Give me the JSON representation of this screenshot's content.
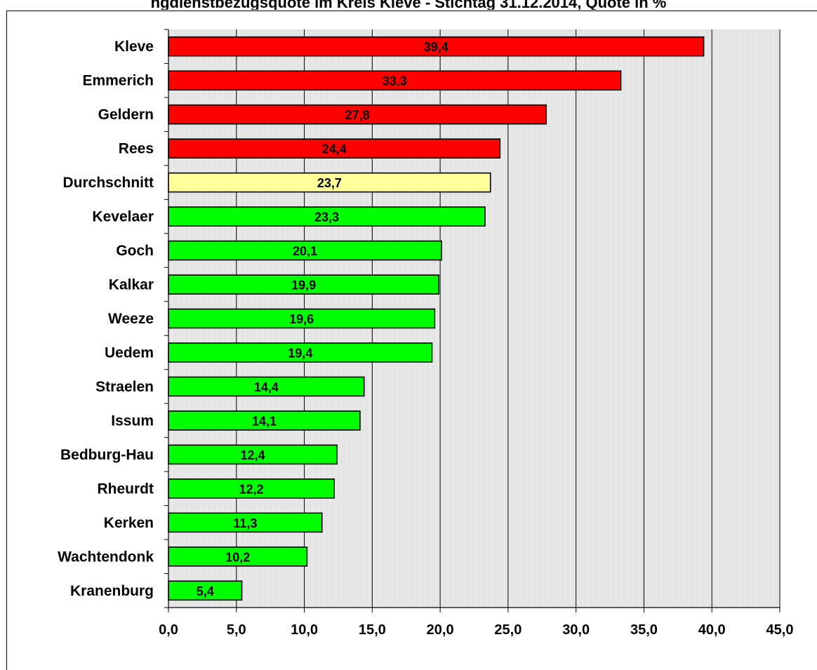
{
  "chart_data": {
    "type": "bar",
    "orientation": "horizontal",
    "title": "",
    "categories": [
      "Kleve",
      "Emmerich",
      "Geldern",
      "Rees",
      "Durchschnitt",
      "Kevelaer",
      "Goch",
      "Kalkar",
      "Weeze",
      "Uedem",
      "Straelen",
      "Issum",
      "Bedburg-Hau",
      "Rheurdt",
      "Kerken",
      "Wachtendonk",
      "Kranenburg"
    ],
    "values": [
      39.4,
      33.3,
      27.8,
      24.4,
      23.7,
      23.3,
      20.1,
      19.9,
      19.6,
      19.4,
      14.4,
      14.1,
      12.4,
      12.2,
      11.3,
      10.2,
      5.4
    ],
    "value_labels": [
      "39,4",
      "33,3",
      "27,8",
      "24,4",
      "23,7",
      "23,3",
      "20,1",
      "19,9",
      "19,6",
      "19,4",
      "14,4",
      "14,1",
      "12,4",
      "12,2",
      "11,3",
      "10,2",
      "5,4"
    ],
    "bar_colors": [
      "#ff0000",
      "#ff0000",
      "#ff0000",
      "#ff0000",
      "#ffff99",
      "#00ff00",
      "#00ff00",
      "#00ff00",
      "#00ff00",
      "#00ff00",
      "#00ff00",
      "#00ff00",
      "#00ff00",
      "#00ff00",
      "#00ff00",
      "#00ff00",
      "#00ff00"
    ],
    "xlim": [
      0,
      45
    ],
    "x_ticks": [
      0,
      5,
      10,
      15,
      20,
      25,
      30,
      35,
      40,
      45
    ],
    "x_tick_labels": [
      "0,0",
      "5,0",
      "10,0",
      "15,0",
      "20,0",
      "25,0",
      "30,0",
      "35,0",
      "40,0",
      "45,0"
    ],
    "xlabel": "",
    "ylabel": "",
    "grid": "vertical",
    "legend": "none",
    "plot_background": "#e4e4e4"
  },
  "title_fragment": "ngdienstbezugsquote im Kreis Kleve - Stichtag 31.12.2014, Quote in %"
}
